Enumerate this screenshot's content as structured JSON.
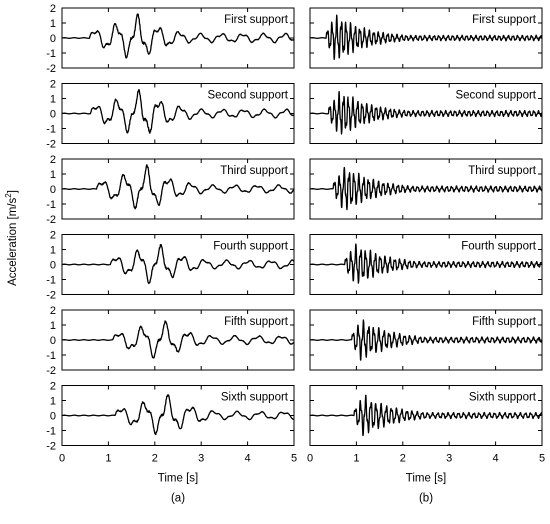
{
  "chart_data": {
    "type": "line",
    "ylabel_base": "Acceleration [m/s",
    "ylabel_exp": "2",
    "ylabel_tail": "]",
    "xlabel": "Time [s]",
    "xlim": [
      0,
      5
    ],
    "ylim": [
      -2,
      2
    ],
    "x_ticks": [
      "0",
      "1",
      "2",
      "3",
      "4",
      "5"
    ],
    "y_ticks": [
      "2",
      "1",
      "0",
      "-1",
      "-2"
    ],
    "columns": [
      {
        "caption": "(a)",
        "panels": [
          {
            "label": "First support",
            "onset": 0.6,
            "peak": 1.65,
            "amp": 1.6,
            "freq": 2.2,
            "tail": 0.32
          },
          {
            "label": "Second support",
            "onset": 0.62,
            "peak": 1.75,
            "amp": 1.65,
            "freq": 2.2,
            "tail": 0.3
          },
          {
            "label": "Third support",
            "onset": 0.75,
            "peak": 1.85,
            "amp": 1.6,
            "freq": 2.1,
            "tail": 0.28
          },
          {
            "label": "Fourth support",
            "onset": 1.05,
            "peak": 2.05,
            "amp": 1.45,
            "freq": 2.1,
            "tail": 0.3
          },
          {
            "label": "Fifth support",
            "onset": 1.1,
            "peak": 2.15,
            "amp": 1.4,
            "freq": 2.0,
            "tail": 0.3
          },
          {
            "label": "Sixth support",
            "onset": 1.15,
            "peak": 2.25,
            "amp": 1.45,
            "freq": 2.0,
            "tail": 0.28
          }
        ]
      },
      {
        "caption": "(b)",
        "panels": [
          {
            "label": "First support",
            "onset": 0.35,
            "peak": 0.55,
            "amp": 1.6,
            "freq": 10.0,
            "tail": 0.18
          },
          {
            "label": "Second support",
            "onset": 0.4,
            "peak": 0.65,
            "amp": 1.55,
            "freq": 10.0,
            "tail": 0.2
          },
          {
            "label": "Third support",
            "onset": 0.5,
            "peak": 0.75,
            "amp": 1.55,
            "freq": 9.5,
            "tail": 0.2
          },
          {
            "label": "Fourth support",
            "onset": 0.75,
            "peak": 1.0,
            "amp": 1.4,
            "freq": 9.5,
            "tail": 0.2
          },
          {
            "label": "Fifth support",
            "onset": 0.9,
            "peak": 1.1,
            "amp": 1.4,
            "freq": 9.0,
            "tail": 0.2
          },
          {
            "label": "Sixth support",
            "onset": 0.95,
            "peak": 1.15,
            "amp": 1.4,
            "freq": 9.0,
            "tail": 0.2
          }
        ]
      }
    ]
  }
}
